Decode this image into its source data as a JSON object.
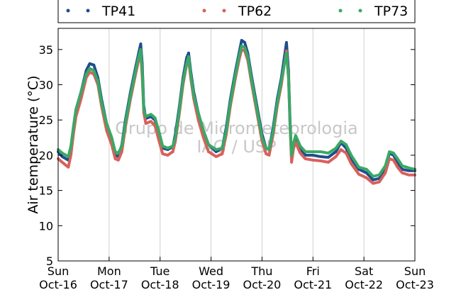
{
  "chart_data": {
    "type": "scatter",
    "title": "",
    "ylabel": "Air temperature (°C)",
    "xlabel": "",
    "ylim": [
      5,
      38
    ],
    "xlim": [
      0,
      7
    ],
    "yticks": [
      5,
      10,
      15,
      20,
      25,
      30,
      35
    ],
    "xticks": [
      {
        "x": 0,
        "day": "Sun",
        "date": "Oct-16"
      },
      {
        "x": 1,
        "day": "Mon",
        "date": "Oct-17"
      },
      {
        "x": 2,
        "day": "Tue",
        "date": "Oct-18"
      },
      {
        "x": 3,
        "day": "Wed",
        "date": "Oct-19"
      },
      {
        "x": 4,
        "day": "Thu",
        "date": "Oct-20"
      },
      {
        "x": 5,
        "day": "Fri",
        "date": "Oct-21"
      },
      {
        "x": 6,
        "day": "Sat",
        "date": "Oct-22"
      },
      {
        "x": 7,
        "day": "Sun",
        "date": "Oct-23"
      }
    ],
    "grid": "vertical",
    "legend_placement": "top",
    "watermark": [
      "Grupo de Micrometeorologia",
      "IAG / USP"
    ],
    "series": [
      {
        "name": "TP41",
        "color": "#1f4e8c",
        "points": [
          [
            0.0,
            20.5
          ],
          [
            0.08,
            19.8
          ],
          [
            0.2,
            19.3
          ],
          [
            0.25,
            21.0
          ],
          [
            0.3,
            24.0
          ],
          [
            0.35,
            26.5
          ],
          [
            0.45,
            29.0
          ],
          [
            0.55,
            32.0
          ],
          [
            0.62,
            33.0
          ],
          [
            0.7,
            32.8
          ],
          [
            0.78,
            31.0
          ],
          [
            0.85,
            28.0
          ],
          [
            0.95,
            24.5
          ],
          [
            1.05,
            22.5
          ],
          [
            1.12,
            20.0
          ],
          [
            1.18,
            19.8
          ],
          [
            1.25,
            21.5
          ],
          [
            1.32,
            25.0
          ],
          [
            1.42,
            29.0
          ],
          [
            1.52,
            32.5
          ],
          [
            1.58,
            34.5
          ],
          [
            1.62,
            35.8
          ],
          [
            1.65,
            33.0
          ],
          [
            1.68,
            27.0
          ],
          [
            1.72,
            25.2
          ],
          [
            1.82,
            25.5
          ],
          [
            1.9,
            25.0
          ],
          [
            1.98,
            23.0
          ],
          [
            2.05,
            21.0
          ],
          [
            2.15,
            20.8
          ],
          [
            2.25,
            21.2
          ],
          [
            2.3,
            23.0
          ],
          [
            2.38,
            27.0
          ],
          [
            2.45,
            31.0
          ],
          [
            2.52,
            33.8
          ],
          [
            2.56,
            34.5
          ],
          [
            2.6,
            32.0
          ],
          [
            2.66,
            29.0
          ],
          [
            2.75,
            26.0
          ],
          [
            2.85,
            23.5
          ],
          [
            2.95,
            21.5
          ],
          [
            3.1,
            20.5
          ],
          [
            3.22,
            21.0
          ],
          [
            3.3,
            24.0
          ],
          [
            3.38,
            28.0
          ],
          [
            3.48,
            32.0
          ],
          [
            3.55,
            34.5
          ],
          [
            3.6,
            36.3
          ],
          [
            3.66,
            36.0
          ],
          [
            3.72,
            34.5
          ],
          [
            3.8,
            31.0
          ],
          [
            3.9,
            27.0
          ],
          [
            4.0,
            23.0
          ],
          [
            4.08,
            21.0
          ],
          [
            4.14,
            20.8
          ],
          [
            4.22,
            24.0
          ],
          [
            4.3,
            28.0
          ],
          [
            4.38,
            31.0
          ],
          [
            4.44,
            34.0
          ],
          [
            4.48,
            36.0
          ],
          [
            4.52,
            32.0
          ],
          [
            4.55,
            25.0
          ],
          [
            4.58,
            19.5
          ],
          [
            4.62,
            21.5
          ],
          [
            4.66,
            22.5
          ],
          [
            4.75,
            21.0
          ],
          [
            4.85,
            20.0
          ],
          [
            5.0,
            20.0
          ],
          [
            5.15,
            19.8
          ],
          [
            5.3,
            19.7
          ],
          [
            5.45,
            20.5
          ],
          [
            5.55,
            21.8
          ],
          [
            5.65,
            21.0
          ],
          [
            5.75,
            19.5
          ],
          [
            5.9,
            18.0
          ],
          [
            6.05,
            17.5
          ],
          [
            6.18,
            16.5
          ],
          [
            6.3,
            16.7
          ],
          [
            6.42,
            18.0
          ],
          [
            6.5,
            20.3
          ],
          [
            6.58,
            20.0
          ],
          [
            6.66,
            19.0
          ],
          [
            6.75,
            18.0
          ],
          [
            6.88,
            17.8
          ],
          [
            7.0,
            17.8
          ]
        ]
      },
      {
        "name": "TP62",
        "color": "#d9605a",
        "points": [
          [
            0.0,
            19.5
          ],
          [
            0.08,
            19.0
          ],
          [
            0.2,
            18.3
          ],
          [
            0.25,
            20.0
          ],
          [
            0.3,
            23.0
          ],
          [
            0.35,
            25.5
          ],
          [
            0.45,
            28.0
          ],
          [
            0.55,
            31.0
          ],
          [
            0.62,
            31.8
          ],
          [
            0.7,
            31.5
          ],
          [
            0.78,
            30.0
          ],
          [
            0.85,
            27.0
          ],
          [
            0.95,
            23.5
          ],
          [
            1.05,
            21.5
          ],
          [
            1.12,
            19.5
          ],
          [
            1.18,
            19.3
          ],
          [
            1.25,
            20.5
          ],
          [
            1.32,
            24.0
          ],
          [
            1.42,
            28.0
          ],
          [
            1.52,
            31.5
          ],
          [
            1.58,
            33.5
          ],
          [
            1.62,
            34.5
          ],
          [
            1.65,
            31.0
          ],
          [
            1.68,
            26.0
          ],
          [
            1.72,
            24.5
          ],
          [
            1.82,
            24.8
          ],
          [
            1.9,
            24.2
          ],
          [
            1.98,
            22.0
          ],
          [
            2.05,
            20.2
          ],
          [
            2.15,
            20.0
          ],
          [
            2.25,
            20.5
          ],
          [
            2.3,
            22.0
          ],
          [
            2.38,
            26.0
          ],
          [
            2.45,
            30.0
          ],
          [
            2.52,
            32.8
          ],
          [
            2.56,
            33.5
          ],
          [
            2.6,
            31.0
          ],
          [
            2.66,
            28.0
          ],
          [
            2.75,
            25.0
          ],
          [
            2.85,
            22.5
          ],
          [
            2.95,
            20.5
          ],
          [
            3.1,
            19.8
          ],
          [
            3.22,
            20.2
          ],
          [
            3.3,
            23.0
          ],
          [
            3.38,
            27.0
          ],
          [
            3.48,
            31.0
          ],
          [
            3.55,
            33.5
          ],
          [
            3.6,
            35.0
          ],
          [
            3.66,
            34.8
          ],
          [
            3.72,
            33.5
          ],
          [
            3.8,
            30.0
          ],
          [
            3.9,
            26.0
          ],
          [
            4.0,
            22.0
          ],
          [
            4.08,
            20.2
          ],
          [
            4.14,
            20.0
          ],
          [
            4.22,
            23.0
          ],
          [
            4.3,
            27.0
          ],
          [
            4.38,
            30.0
          ],
          [
            4.44,
            33.0
          ],
          [
            4.48,
            34.8
          ],
          [
            4.52,
            31.0
          ],
          [
            4.55,
            24.0
          ],
          [
            4.58,
            19.0
          ],
          [
            4.62,
            21.0
          ],
          [
            4.66,
            21.8
          ],
          [
            4.75,
            20.3
          ],
          [
            4.85,
            19.5
          ],
          [
            5.0,
            19.3
          ],
          [
            5.15,
            19.2
          ],
          [
            5.3,
            19.0
          ],
          [
            5.45,
            19.8
          ],
          [
            5.55,
            20.8
          ],
          [
            5.65,
            20.3
          ],
          [
            5.75,
            18.8
          ],
          [
            5.9,
            17.3
          ],
          [
            6.05,
            16.8
          ],
          [
            6.18,
            16.0
          ],
          [
            6.3,
            16.2
          ],
          [
            6.42,
            17.5
          ],
          [
            6.5,
            19.5
          ],
          [
            6.58,
            19.3
          ],
          [
            6.66,
            18.3
          ],
          [
            6.75,
            17.5
          ],
          [
            6.88,
            17.2
          ],
          [
            7.0,
            17.2
          ]
        ]
      },
      {
        "name": "TP73",
        "color": "#3aa866",
        "points": [
          [
            0.0,
            20.8
          ],
          [
            0.08,
            20.3
          ],
          [
            0.2,
            19.8
          ],
          [
            0.25,
            21.3
          ],
          [
            0.3,
            24.0
          ],
          [
            0.35,
            26.5
          ],
          [
            0.45,
            29.0
          ],
          [
            0.55,
            31.5
          ],
          [
            0.62,
            32.3
          ],
          [
            0.7,
            32.0
          ],
          [
            0.78,
            30.5
          ],
          [
            0.85,
            27.5
          ],
          [
            0.95,
            24.5
          ],
          [
            1.05,
            22.5
          ],
          [
            1.12,
            20.5
          ],
          [
            1.18,
            20.3
          ],
          [
            1.25,
            21.3
          ],
          [
            1.32,
            24.5
          ],
          [
            1.42,
            28.5
          ],
          [
            1.52,
            32.0
          ],
          [
            1.58,
            34.0
          ],
          [
            1.62,
            35.0
          ],
          [
            1.65,
            32.0
          ],
          [
            1.68,
            26.5
          ],
          [
            1.72,
            25.5
          ],
          [
            1.82,
            25.8
          ],
          [
            1.9,
            25.3
          ],
          [
            1.98,
            23.3
          ],
          [
            2.05,
            21.3
          ],
          [
            2.15,
            21.0
          ],
          [
            2.25,
            21.3
          ],
          [
            2.3,
            22.5
          ],
          [
            2.38,
            26.5
          ],
          [
            2.45,
            30.5
          ],
          [
            2.52,
            33.0
          ],
          [
            2.56,
            34.0
          ],
          [
            2.6,
            31.5
          ],
          [
            2.66,
            28.5
          ],
          [
            2.75,
            26.0
          ],
          [
            2.85,
            23.5
          ],
          [
            2.95,
            21.5
          ],
          [
            3.1,
            20.8
          ],
          [
            3.22,
            21.0
          ],
          [
            3.3,
            23.5
          ],
          [
            3.38,
            27.5
          ],
          [
            3.48,
            31.5
          ],
          [
            3.55,
            34.0
          ],
          [
            3.6,
            35.5
          ],
          [
            3.66,
            35.3
          ],
          [
            3.72,
            34.0
          ],
          [
            3.8,
            30.5
          ],
          [
            3.9,
            26.5
          ],
          [
            4.0,
            22.5
          ],
          [
            4.08,
            21.0
          ],
          [
            4.14,
            20.8
          ],
          [
            4.22,
            23.5
          ],
          [
            4.3,
            27.5
          ],
          [
            4.38,
            30.5
          ],
          [
            4.44,
            33.0
          ],
          [
            4.48,
            34.5
          ],
          [
            4.52,
            31.0
          ],
          [
            4.55,
            24.5
          ],
          [
            4.58,
            20.0
          ],
          [
            4.62,
            21.8
          ],
          [
            4.66,
            22.8
          ],
          [
            4.75,
            21.3
          ],
          [
            4.85,
            20.5
          ],
          [
            5.0,
            20.5
          ],
          [
            5.15,
            20.5
          ],
          [
            5.3,
            20.3
          ],
          [
            5.45,
            21.0
          ],
          [
            5.55,
            22.0
          ],
          [
            5.65,
            21.5
          ],
          [
            5.75,
            20.0
          ],
          [
            5.9,
            18.3
          ],
          [
            6.05,
            18.0
          ],
          [
            6.18,
            17.0
          ],
          [
            6.3,
            17.2
          ],
          [
            6.42,
            18.5
          ],
          [
            6.5,
            20.5
          ],
          [
            6.58,
            20.3
          ],
          [
            6.66,
            19.5
          ],
          [
            6.75,
            18.5
          ],
          [
            6.88,
            18.2
          ],
          [
            7.0,
            18.0
          ]
        ]
      }
    ]
  }
}
